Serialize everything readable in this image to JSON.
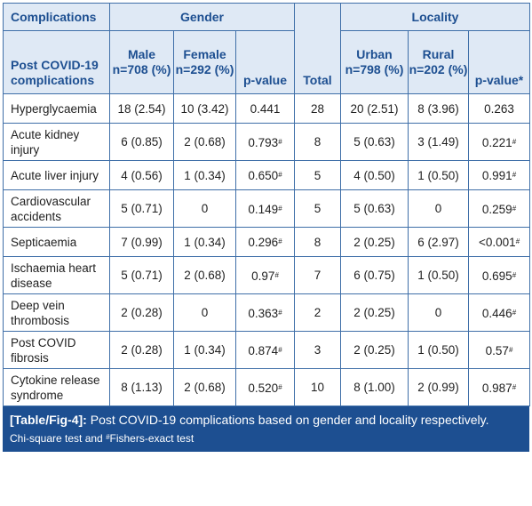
{
  "header": {
    "complications": "Complications",
    "gender": "Gender",
    "locality": "Locality",
    "post_covid": "Post COVID-19 complications",
    "male": "Male n=708 (%)",
    "female": "Female n=292 (%)",
    "pvalue_gender": "p-value",
    "total": "Total",
    "urban": "Urban n=798 (%)",
    "rural": "Rural n=202 (%)",
    "pvalue_locality": "p-value*"
  },
  "rows": [
    {
      "name": "Hyperglycaemia",
      "male": "18 (2.54)",
      "female": "10 (3.42)",
      "p_gender": "0.441",
      "p_gender_mark": "",
      "total": "28",
      "urban": "20 (2.51)",
      "rural": "8 (3.96)",
      "p_locality": "0.263",
      "p_locality_mark": ""
    },
    {
      "name": "Acute kidney injury",
      "male": "6 (0.85)",
      "female": "2 (0.68)",
      "p_gender": "0.793",
      "p_gender_mark": "#",
      "total": "8",
      "urban": "5 (0.63)",
      "rural": "3 (1.49)",
      "p_locality": "0.221",
      "p_locality_mark": "#"
    },
    {
      "name": "Acute liver injury",
      "male": "4 (0.56)",
      "female": "1 (0.34)",
      "p_gender": "0.650",
      "p_gender_mark": "#",
      "total": "5",
      "urban": "4 (0.50)",
      "rural": "1 (0.50)",
      "p_locality": "0.991",
      "p_locality_mark": "#"
    },
    {
      "name": "Cardiovascular accidents",
      "male": "5 (0.71)",
      "female": "0",
      "p_gender": "0.149",
      "p_gender_mark": "#",
      "total": "5",
      "urban": "5 (0.63)",
      "rural": "0",
      "p_locality": "0.259",
      "p_locality_mark": "#"
    },
    {
      "name": "Septicaemia",
      "male": "7 (0.99)",
      "female": "1 (0.34)",
      "p_gender": "0.296",
      "p_gender_mark": "#",
      "total": "8",
      "urban": "2 (0.25)",
      "rural": "6 (2.97)",
      "p_locality": "<0.001",
      "p_locality_mark": "#"
    },
    {
      "name": "Ischaemia heart disease",
      "male": "5 (0.71)",
      "female": "2 (0.68)",
      "p_gender": "0.97",
      "p_gender_mark": "#",
      "total": "7",
      "urban": "6 (0.75)",
      "rural": "1 (0.50)",
      "p_locality": "0.695",
      "p_locality_mark": "#"
    },
    {
      "name": "Deep vein thrombosis",
      "male": "2 (0.28)",
      "female": "0",
      "p_gender": "0.363",
      "p_gender_mark": "#",
      "total": "2",
      "urban": "2 (0.25)",
      "rural": "0",
      "p_locality": "0.446",
      "p_locality_mark": "#"
    },
    {
      "name": "Post COVID fibrosis",
      "male": "2 (0.28)",
      "female": "1 (0.34)",
      "p_gender": "0.874",
      "p_gender_mark": "#",
      "total": "3",
      "urban": "2 (0.25)",
      "rural": "1 (0.50)",
      "p_locality": "0.57",
      "p_locality_mark": "#"
    },
    {
      "name": "Cytokine release syndrome",
      "male": "8 (1.13)",
      "female": "2 (0.68)",
      "p_gender": "0.520",
      "p_gender_mark": "#",
      "total": "10",
      "urban": "8 (1.00)",
      "rural": "2 (0.99)",
      "p_locality": "0.987",
      "p_locality_mark": "#"
    }
  ],
  "caption": {
    "label": "[Table/Fig-4]:",
    "text": "Post COVID-19 complications based on gender and locality respectively.",
    "note_prefix": "Chi-square test and ",
    "note_mark": "#",
    "note_suffix": "Fishers-exact test"
  }
}
